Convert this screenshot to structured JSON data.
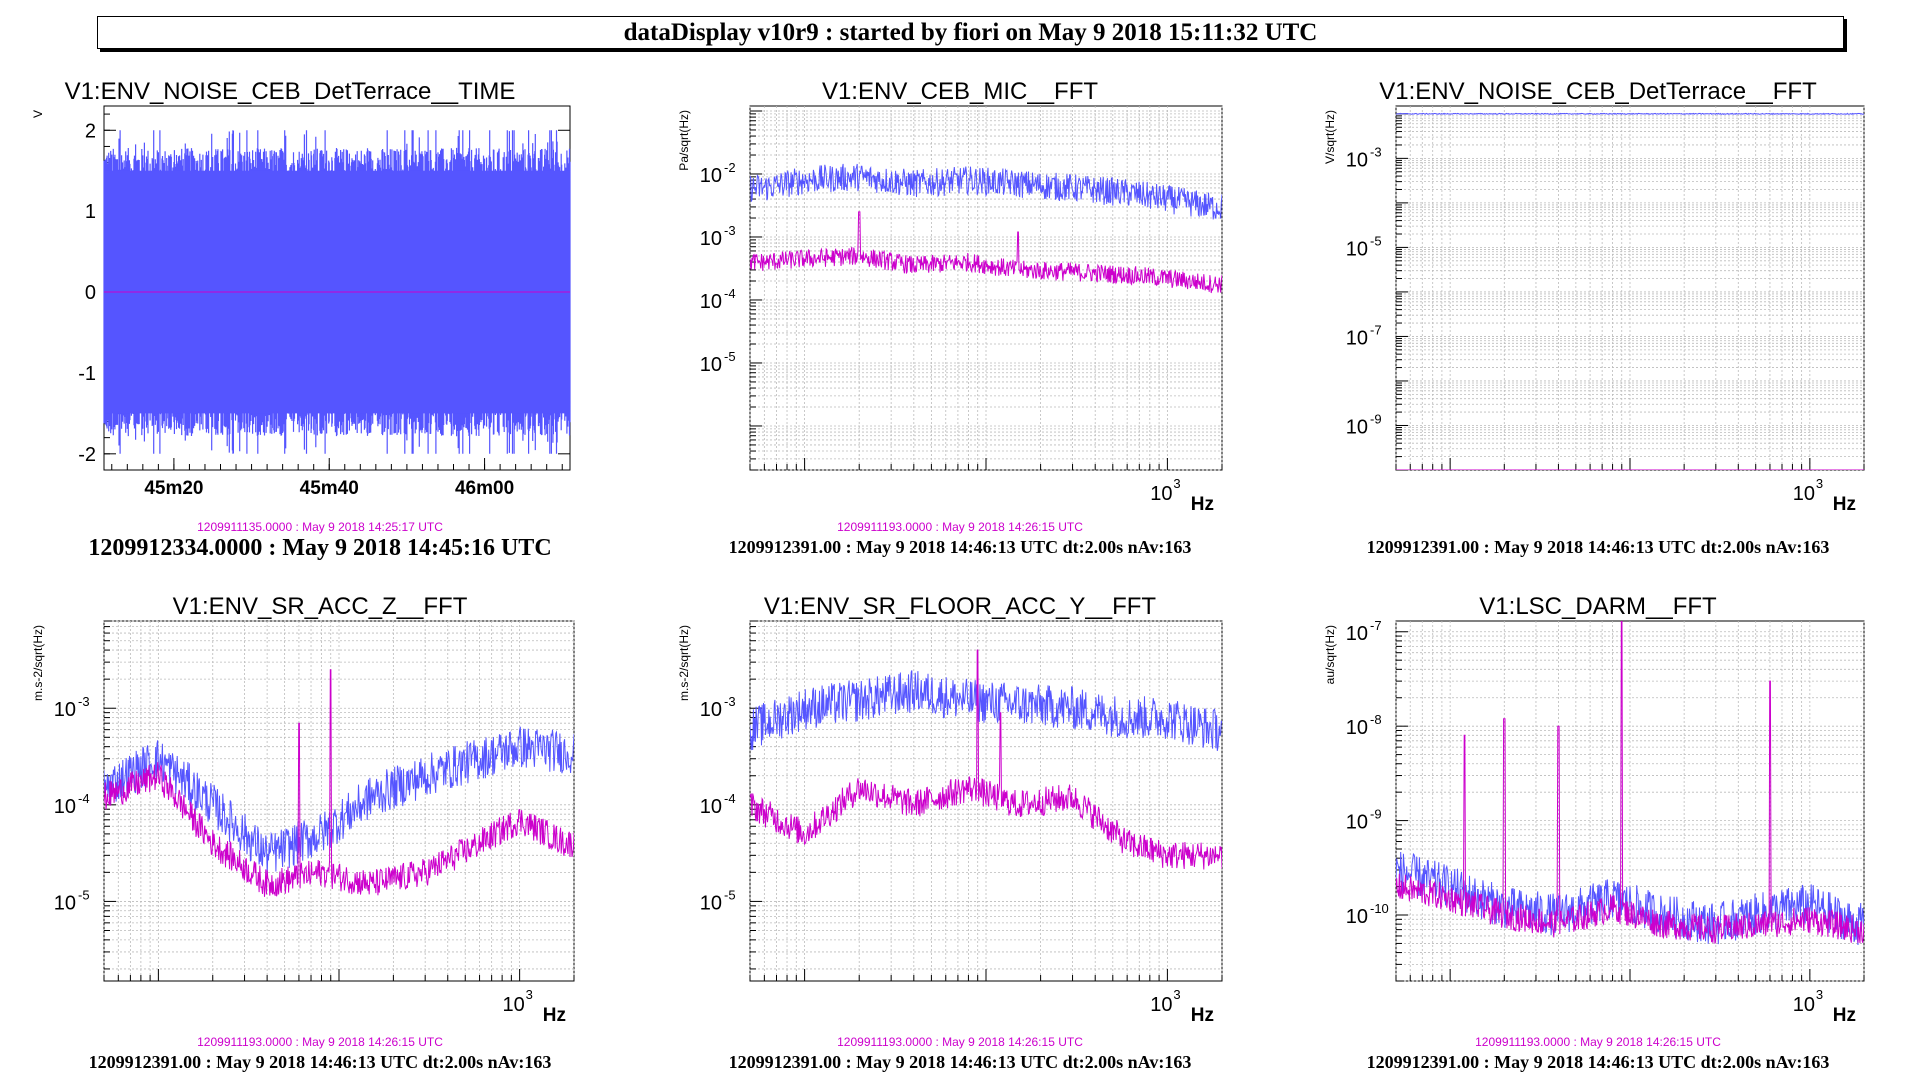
{
  "header": {
    "title": "dataDisplay v10r9 : started by fiori on May  9 2018 15:11:32 UTC"
  },
  "colors": {
    "series_ref": "#cc00cc",
    "series_live": "#5555ff",
    "grid": "#aaaaaa"
  },
  "panels": [
    {
      "title": "V1:ENV_NOISE_CEB_DetTerrace__TIME",
      "ylabel": "V",
      "xlabel": "",
      "caption_ref": "",
      "caption_main": "1209912334.0000 : May  9 2018 14:45:16 UTC",
      "caption_sub": "1209911135.0000 : May  9 2018 14:25:17 UTC"
    },
    {
      "title": "V1:ENV_CEB_MIC__FFT",
      "ylabel": "Pa/sqrt(Hz)",
      "xlabel": "Hz",
      "caption_sub": "1209911193.0000 : May  9 2018 14:26:15 UTC",
      "caption_main": "1209912391.00 : May  9 2018 14:46:13 UTC dt:2.00s nAv:163"
    },
    {
      "title": "V1:ENV_NOISE_CEB_DetTerrace__FFT",
      "ylabel": "V/sqrt(Hz)",
      "xlabel": "Hz",
      "caption_sub": "",
      "caption_main": "1209912391.00 : May  9 2018 14:46:13 UTC dt:2.00s nAv:163"
    },
    {
      "title": "V1:ENV_SR_ACC_Z__FFT",
      "ylabel": "m.s-2/sqrt(Hz)",
      "xlabel": "Hz",
      "caption_sub": "1209911193.0000 : May  9 2018 14:26:15 UTC",
      "caption_main": "1209912391.00 : May  9 2018 14:46:13 UTC dt:2.00s nAv:163"
    },
    {
      "title": "V1:ENV_SR_FLOOR_ACC_Y__FFT",
      "ylabel": "m.s-2/sqrt(Hz)",
      "xlabel": "Hz",
      "caption_sub": "1209911193.0000 : May  9 2018 14:26:15 UTC",
      "caption_main": "1209912391.00 : May  9 2018 14:46:13 UTC dt:2.00s nAv:163"
    },
    {
      "title": "V1:LSC_DARM__FFT",
      "ylabel": "au/sqrt(Hz)",
      "xlabel": "Hz",
      "caption_sub": "1209911193.0000 : May  9 2018 14:26:15 UTC",
      "caption_main": "1209912391.00 : May  9 2018 14:46:13 UTC dt:2.00s nAv:163"
    }
  ],
  "chart_data": [
    {
      "type": "line",
      "title": "V1:ENV_NOISE_CEB_DetTerrace__TIME",
      "ylabel": "V",
      "xscale": "linear",
      "yscale": "linear",
      "x_tick_labels": [
        "45m20",
        "45m40",
        "46m00"
      ],
      "x_tick_seconds": [
        20,
        40,
        60
      ],
      "xlim_seconds": [
        11,
        71
      ],
      "y_ticks": [
        -2,
        -1,
        0,
        1,
        2
      ],
      "ylim": [
        -2.2,
        2.3
      ],
      "grid": false,
      "series": [
        {
          "role": "live",
          "color": "#5555ff",
          "envelope_amplitude": 1.55,
          "peak_amplitude": 2.0
        },
        {
          "role": "reference",
          "color": "#cc00cc",
          "constant_value": 0
        }
      ]
    },
    {
      "type": "line",
      "title": "V1:ENV_CEB_MIC__FFT",
      "ylabel": "Pa/sqrt(Hz)",
      "xlabel": "Hz",
      "xscale": "log",
      "yscale": "log",
      "xlim": [
        5,
        2000
      ],
      "ylim": [
        2e-07,
        0.12
      ],
      "y_tick_exponents": [
        -5,
        -4,
        -3,
        -2
      ],
      "x_tick_exponents": [
        3
      ],
      "grid": true,
      "series": [
        {
          "role": "live",
          "color": "#5555ff",
          "freq": [
            6,
            10,
            20,
            40,
            80,
            150,
            300,
            600,
            1000,
            1800
          ],
          "asd": [
            0.006,
            0.008,
            0.009,
            0.007,
            0.008,
            0.007,
            0.006,
            0.005,
            0.004,
            0.003
          ]
        },
        {
          "role": "reference",
          "color": "#cc00cc",
          "freq": [
            6,
            10,
            20,
            40,
            80,
            150,
            300,
            600,
            1000,
            1800
          ],
          "asd": [
            0.0004,
            0.00045,
            0.0005,
            0.00035,
            0.0004,
            0.0003,
            0.00028,
            0.00025,
            0.00022,
            0.00018
          ]
        }
      ],
      "peaks": [
        {
          "freq": 20,
          "ref_asd": 0.0025
        },
        {
          "freq": 150,
          "ref_asd": 0.0012
        }
      ]
    },
    {
      "type": "line",
      "title": "V1:ENV_NOISE_CEB_DetTerrace__FFT",
      "ylabel": "V/sqrt(Hz)",
      "xlabel": "Hz",
      "xscale": "log",
      "yscale": "log",
      "xlim": [
        5,
        2000
      ],
      "ylim": [
        1e-10,
        0.015
      ],
      "y_tick_exponents": [
        -9,
        -7,
        -5,
        -3
      ],
      "x_tick_exponents": [
        3
      ],
      "grid": true,
      "series": [
        {
          "role": "live",
          "color": "#5555ff",
          "freq": [
            5,
            50,
            500,
            2000
          ],
          "asd": [
            0.01,
            0.01,
            0.01,
            0.01
          ]
        },
        {
          "role": "reference",
          "color": "#cc00cc",
          "freq": [
            5,
            2000
          ],
          "asd": [
            1e-10,
            1e-10
          ]
        }
      ]
    },
    {
      "type": "line",
      "title": "V1:ENV_SR_ACC_Z__FFT",
      "ylabel": "m.s-2/sqrt(Hz)",
      "xlabel": "Hz",
      "xscale": "log",
      "yscale": "log",
      "xlim": [
        5,
        2000
      ],
      "ylim": [
        1.5e-06,
        0.008
      ],
      "y_tick_exponents": [
        -5,
        -4,
        -3
      ],
      "x_tick_exponents": [
        3
      ],
      "grid": true,
      "series": [
        {
          "role": "live",
          "color": "#5555ff",
          "freq": [
            5,
            10,
            20,
            40,
            80,
            150,
            300,
            600,
            1000,
            1800
          ],
          "asd": [
            0.00015,
            0.0003,
            0.0001,
            3e-05,
            5e-05,
            0.00012,
            0.0002,
            0.0003,
            0.0004,
            0.00035
          ]
        },
        {
          "role": "reference",
          "color": "#cc00cc",
          "freq": [
            5,
            10,
            20,
            40,
            80,
            150,
            300,
            600,
            1000,
            1800
          ],
          "asd": [
            0.00012,
            0.0002,
            4e-05,
            1.5e-05,
            2e-05,
            1.5e-05,
            2e-05,
            4e-05,
            7e-05,
            4e-05
          ]
        }
      ],
      "peaks": [
        {
          "freq": 90,
          "ref_asd": 0.0025
        },
        {
          "freq": 60,
          "ref_asd": 0.0007
        }
      ]
    },
    {
      "type": "line",
      "title": "V1:ENV_SR_FLOOR_ACC_Y__FFT",
      "ylabel": "m.s-2/sqrt(Hz)",
      "xlabel": "Hz",
      "xscale": "log",
      "yscale": "log",
      "xlim": [
        5,
        2000
      ],
      "ylim": [
        1.5e-06,
        0.008
      ],
      "y_tick_exponents": [
        -5,
        -4,
        -3
      ],
      "x_tick_exponents": [
        3
      ],
      "grid": true,
      "series": [
        {
          "role": "live",
          "color": "#5555ff",
          "freq": [
            5,
            10,
            20,
            40,
            80,
            150,
            300,
            600,
            1000,
            1800
          ],
          "asd": [
            0.0006,
            0.001,
            0.0012,
            0.0015,
            0.0012,
            0.0011,
            0.001,
            0.0008,
            0.0008,
            0.0006
          ]
        },
        {
          "role": "reference",
          "color": "#cc00cc",
          "freq": [
            5,
            10,
            20,
            40,
            80,
            150,
            300,
            600,
            1000,
            1800
          ],
          "asd": [
            0.0001,
            5e-05,
            0.00015,
            0.0001,
            0.00015,
            0.0001,
            0.00012,
            4e-05,
            3e-05,
            3e-05
          ]
        }
      ],
      "peaks": [
        {
          "freq": 90,
          "ref_asd": 0.004
        },
        {
          "freq": 120,
          "ref_asd": 0.0009
        }
      ]
    },
    {
      "type": "line",
      "title": "V1:LSC_DARM__FFT",
      "ylabel": "au/sqrt(Hz)",
      "xlabel": "Hz",
      "xscale": "log",
      "yscale": "log",
      "xlim": [
        5,
        2000
      ],
      "ylim": [
        2e-11,
        1.3e-07
      ],
      "y_tick_exponents": [
        -10,
        -9,
        -8,
        -7
      ],
      "x_tick_exponents": [
        3
      ],
      "grid": true,
      "series": [
        {
          "role": "live",
          "color": "#5555ff",
          "freq": [
            5,
            10,
            20,
            40,
            80,
            150,
            300,
            600,
            1000,
            1800
          ],
          "asd": [
            3e-10,
            2e-10,
            1.2e-10,
            1e-10,
            1.5e-10,
            1e-10,
            8e-11,
            1.1e-10,
            1.3e-10,
            8e-11
          ]
        },
        {
          "role": "reference",
          "color": "#cc00cc",
          "freq": [
            5,
            10,
            20,
            40,
            80,
            150,
            300,
            600,
            1000,
            1800
          ],
          "asd": [
            2e-10,
            1.5e-10,
            1e-10,
            8e-11,
            1.2e-10,
            8e-11,
            7e-11,
            8e-11,
            9e-11,
            7e-11
          ]
        }
      ],
      "peaks": [
        {
          "freq": 90,
          "ref_asd": 1.3e-07
        },
        {
          "freq": 20,
          "ref_asd": 1.2e-08
        },
        {
          "freq": 600,
          "ref_asd": 3e-08
        },
        {
          "freq": 40,
          "ref_asd": 1e-08
        },
        {
          "freq": 12,
          "ref_asd": 8e-09
        }
      ]
    }
  ]
}
